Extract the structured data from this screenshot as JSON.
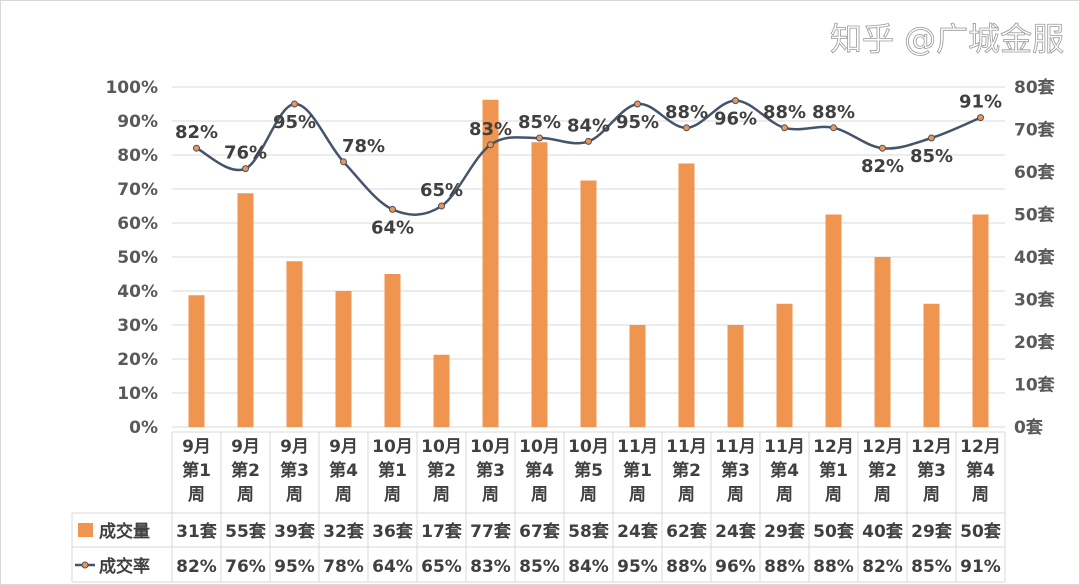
{
  "chart_data": {
    "type": "bar+line",
    "categories": [
      "9月第1周",
      "9月第2周",
      "9月第3周",
      "9月第4周",
      "10月第1周",
      "10月第2周",
      "10月第3周",
      "10月第4周",
      "10月第5周",
      "11月第1周",
      "11月第2周",
      "11月第3周",
      "11月第4周",
      "12月第1周",
      "12月第2周",
      "12月第3周",
      "12月第4周"
    ],
    "category_lines": [
      [
        "9月",
        "第1",
        "周"
      ],
      [
        "9月",
        "第2",
        "周"
      ],
      [
        "9月",
        "第3",
        "周"
      ],
      [
        "9月",
        "第4",
        "周"
      ],
      [
        "10月",
        "第1",
        "周"
      ],
      [
        "10月",
        "第2",
        "周"
      ],
      [
        "10月",
        "第3",
        "周"
      ],
      [
        "10月",
        "第4",
        "周"
      ],
      [
        "10月",
        "第5",
        "周"
      ],
      [
        "11月",
        "第1",
        "周"
      ],
      [
        "11月",
        "第2",
        "周"
      ],
      [
        "11月",
        "第3",
        "周"
      ],
      [
        "11月",
        "第4",
        "周"
      ],
      [
        "12月",
        "第1",
        "周"
      ],
      [
        "12月",
        "第2",
        "周"
      ],
      [
        "12月",
        "第3",
        "周"
      ],
      [
        "12月",
        "第4",
        "周"
      ]
    ],
    "series": [
      {
        "name": "成交量",
        "type": "bar",
        "axis": "right",
        "unit": "套",
        "color": "#F0954F",
        "values": [
          31,
          55,
          39,
          32,
          36,
          17,
          77,
          67,
          58,
          24,
          62,
          24,
          29,
          50,
          40,
          29,
          50
        ]
      },
      {
        "name": "成交率",
        "type": "line",
        "axis": "left",
        "unit": "%",
        "color": "#44546A",
        "values": [
          82,
          76,
          95,
          78,
          64,
          65,
          83,
          85,
          84,
          95,
          88,
          96,
          88,
          88,
          82,
          85,
          91
        ]
      }
    ],
    "left_axis": {
      "ylim": [
        0,
        100
      ],
      "ticks": [
        "0%",
        "10%",
        "20%",
        "30%",
        "40%",
        "50%",
        "60%",
        "70%",
        "80%",
        "90%",
        "100%"
      ]
    },
    "right_axis": {
      "ylim": [
        0,
        80
      ],
      "ticks": [
        "0套",
        "10套",
        "20套",
        "30套",
        "40套",
        "50套",
        "60套",
        "70套",
        "80套"
      ]
    },
    "grid": true,
    "legend": "data-table"
  },
  "watermark": "知乎 @广城金服"
}
